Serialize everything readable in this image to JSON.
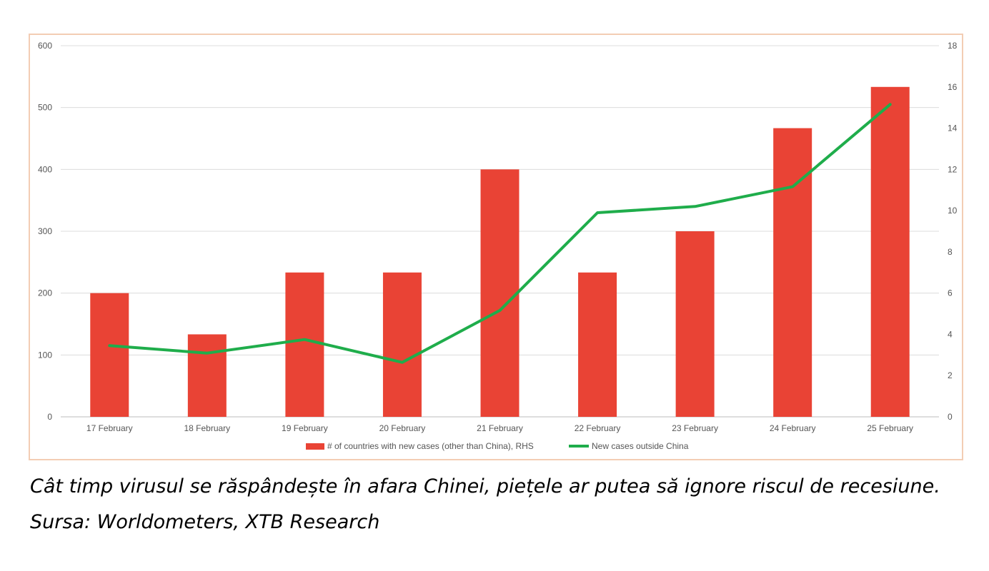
{
  "chart_data": {
    "type": "bar",
    "categories": [
      "17 February",
      "18 February",
      "19 February",
      "20 February",
      "21 February",
      "22 February",
      "23 February",
      "24 February",
      "25 February"
    ],
    "series": [
      {
        "name": "# of countries with new cases (other than China), RHS",
        "type": "bar",
        "axis": "right",
        "color": "#e94335",
        "values": [
          6,
          4,
          7,
          7,
          12,
          7,
          9,
          14,
          16
        ]
      },
      {
        "name": "New cases outside China",
        "type": "line",
        "axis": "left",
        "color": "#1fad4b",
        "values": [
          115,
          103,
          125,
          88,
          172,
          330,
          340,
          372,
          505
        ]
      }
    ],
    "left_axis": {
      "min": 0,
      "max": 600,
      "ticks": [
        "0",
        "100",
        "200",
        "300",
        "400",
        "500",
        "600"
      ]
    },
    "right_axis": {
      "min": 0,
      "max": 18,
      "ticks": [
        "0",
        "2",
        "4",
        "6",
        "8",
        "10",
        "12",
        "14",
        "16",
        "18"
      ]
    },
    "grid": true,
    "legend_position": "bottom"
  },
  "caption": {
    "line1": "Cât timp virusul se răspândește în afara Chinei, piețele ar putea să ignore riscul de recesiune.",
    "line2": "Sursa: Worldometers, XTB Research"
  }
}
